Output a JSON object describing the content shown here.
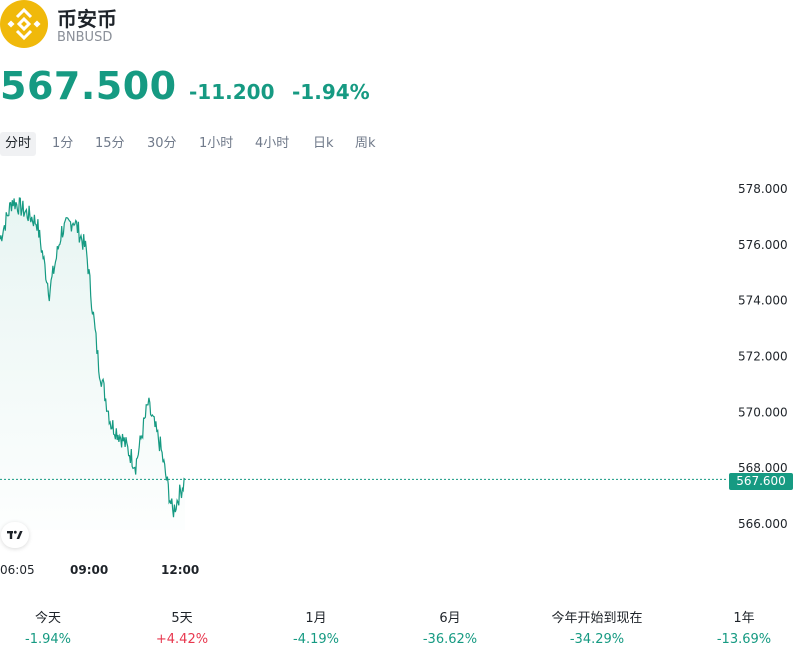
{
  "header": {
    "name": "币安币",
    "symbol": "BNBUSD",
    "logo_icon": "bnb-logo-icon",
    "logo_color": "#f0b90b"
  },
  "quote": {
    "price": "567.500",
    "change": "-11.200",
    "change_pct": "-1.94%",
    "color": "#169a82"
  },
  "intervals": [
    {
      "label": "分时",
      "active": true
    },
    {
      "label": "1分",
      "active": false
    },
    {
      "label": "15分",
      "active": false
    },
    {
      "label": "30分",
      "active": false
    },
    {
      "label": "1小时",
      "active": false
    },
    {
      "label": "4小时",
      "active": false
    },
    {
      "label": "日k",
      "active": false
    },
    {
      "label": "周k",
      "active": false
    }
  ],
  "chart": {
    "last_price_label": "567.600",
    "brand_icon": "tradingview-logo-icon",
    "x_labels": [
      "06:05",
      "09:00",
      "12:00"
    ]
  },
  "chart_data": {
    "type": "area",
    "title": "",
    "xlabel": "",
    "ylabel": "",
    "ylim": [
      565,
      579
    ],
    "yticks": [
      "578.000",
      "576.000",
      "574.000",
      "572.000",
      "570.000",
      "568.000",
      "566.000"
    ],
    "last_value": 567.6,
    "line_color": "#169a82",
    "series": [
      {
        "x": [
          "06:05",
          "06:30",
          "06:55",
          "07:20",
          "07:45",
          "08:10",
          "08:35",
          "09:00",
          "09:25",
          "09:50",
          "10:15",
          "10:40",
          "11:05",
          "11:30",
          "11:55",
          "12:10"
        ],
        "values": [
          576.2,
          577.6,
          577.2,
          576.8,
          574.3,
          576.5,
          576.9,
          575.8,
          571.7,
          569.6,
          569.0,
          568.1,
          570.3,
          568.8,
          566.4,
          567.6
        ]
      }
    ]
  },
  "performance": [
    {
      "label": "今天",
      "value": "-1.94%",
      "direction": "down"
    },
    {
      "label": "5天",
      "value": "+4.42%",
      "direction": "up"
    },
    {
      "label": "1月",
      "value": "-4.19%",
      "direction": "down"
    },
    {
      "label": "6月",
      "value": "-36.62%",
      "direction": "down"
    },
    {
      "label": "今年开始到现在",
      "value": "-34.29%",
      "direction": "down"
    },
    {
      "label": "1年",
      "value": "-13.69%",
      "direction": "down"
    }
  ]
}
